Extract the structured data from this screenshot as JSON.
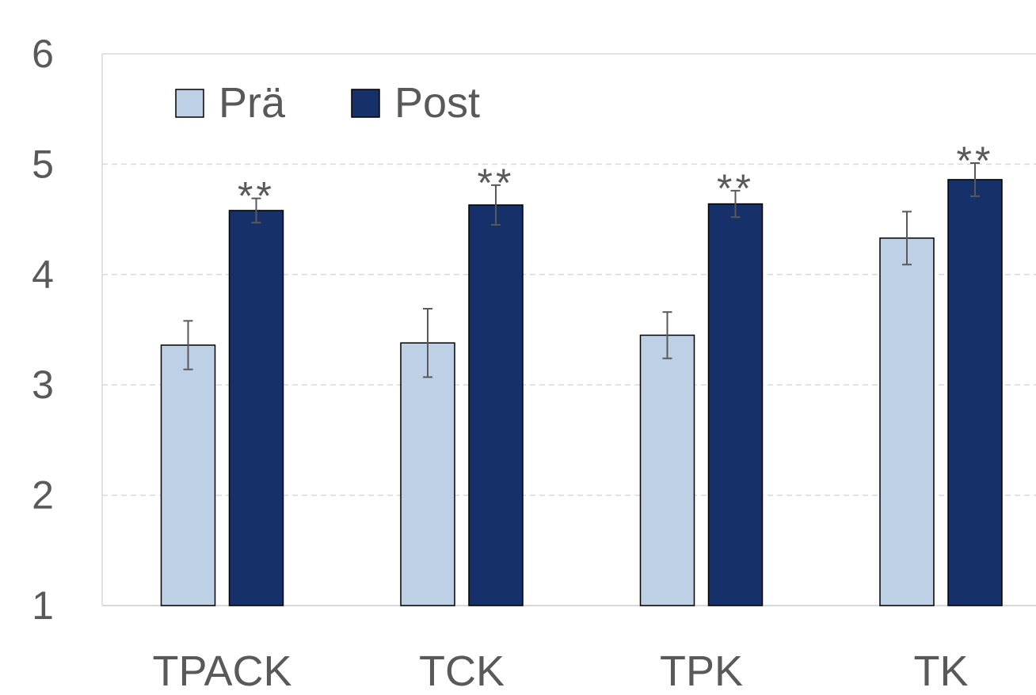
{
  "chart_data": {
    "type": "bar",
    "title": "",
    "xlabel": "",
    "ylabel": "",
    "categories": [
      "TPACK",
      "TCK",
      "TPK",
      "TK"
    ],
    "ylim": [
      1,
      6
    ],
    "yticks": [
      "1",
      "2",
      "3",
      "4",
      "5",
      "6"
    ],
    "grid": "horizontal-dashed",
    "legend_position": "top-left",
    "series": [
      {
        "name": "Prä",
        "color": "#BDD0E6",
        "values": [
          3.36,
          3.38,
          3.45,
          4.33
        ],
        "error": [
          0.22,
          0.31,
          0.21,
          0.24
        ]
      },
      {
        "name": "Post",
        "color": "#16306A",
        "values": [
          4.58,
          4.63,
          4.64,
          4.86
        ],
        "error": [
          0.11,
          0.18,
          0.12,
          0.15
        ]
      }
    ],
    "annotations": [
      "**",
      "**",
      "**",
      "**"
    ]
  }
}
